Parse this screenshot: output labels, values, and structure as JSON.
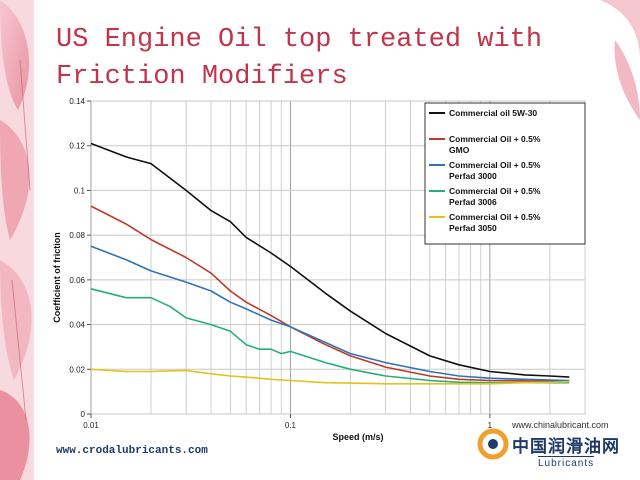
{
  "slide": {
    "title_line1": "US Engine Oil top treated with",
    "title_line2": "Friction Modifiers",
    "footer_url": "www.crodalubricants.com"
  },
  "watermark": {
    "url": "www.chinalubricant.com",
    "name_cn": "中国润滑油网",
    "name_en": "Lubricants"
  },
  "chart_data": {
    "type": "line",
    "xlabel": "Speed (m/s)",
    "ylabel": "Coefficient of friction",
    "xscale": "log",
    "xlim": [
      0.01,
      3
    ],
    "ylim": [
      0,
      0.14
    ],
    "xticks": [
      0.01,
      0.1,
      1
    ],
    "xtick_labels": [
      "0.01",
      "0.1",
      "1"
    ],
    "yticks": [
      0,
      0.02,
      0.04,
      0.06,
      0.08,
      0.1,
      0.12,
      0.14
    ],
    "ytick_labels": [
      "0",
      "0.02",
      "0.04",
      "0.06",
      "0.08",
      "0.1",
      "0.12",
      "0.14"
    ],
    "grid": true,
    "legend_position": "top-right",
    "series": [
      {
        "name_lines": [
          "Commercial oil 5W-30"
        ],
        "color": "#111111",
        "x": [
          0.01,
          0.015,
          0.02,
          0.03,
          0.04,
          0.05,
          0.06,
          0.08,
          0.1,
          0.15,
          0.2,
          0.3,
          0.5,
          0.7,
          1,
          1.5,
          2,
          2.5
        ],
        "y": [
          0.121,
          0.115,
          0.112,
          0.1,
          0.091,
          0.086,
          0.079,
          0.072,
          0.066,
          0.054,
          0.046,
          0.036,
          0.026,
          0.022,
          0.019,
          0.0175,
          0.017,
          0.0165
        ]
      },
      {
        "name_lines": [
          "Commercial Oil + 0.5%",
          "GMO"
        ],
        "color": "#c0392b",
        "x": [
          0.01,
          0.015,
          0.02,
          0.03,
          0.04,
          0.05,
          0.06,
          0.08,
          0.1,
          0.15,
          0.2,
          0.3,
          0.5,
          0.7,
          1,
          1.5,
          2,
          2.5
        ],
        "y": [
          0.093,
          0.085,
          0.078,
          0.07,
          0.063,
          0.055,
          0.05,
          0.044,
          0.039,
          0.031,
          0.026,
          0.021,
          0.017,
          0.0155,
          0.015,
          0.0148,
          0.0148,
          0.0148
        ]
      },
      {
        "name_lines": [
          "Commercial Oil + 0.5%",
          "Perfad 3000"
        ],
        "color": "#2e75b6",
        "x": [
          0.01,
          0.015,
          0.02,
          0.03,
          0.04,
          0.05,
          0.06,
          0.08,
          0.1,
          0.15,
          0.2,
          0.3,
          0.5,
          0.7,
          1,
          1.5,
          2,
          2.5
        ],
        "y": [
          0.075,
          0.069,
          0.064,
          0.059,
          0.055,
          0.05,
          0.047,
          0.042,
          0.039,
          0.032,
          0.027,
          0.023,
          0.019,
          0.017,
          0.016,
          0.0155,
          0.0152,
          0.015
        ]
      },
      {
        "name_lines": [
          "Commercial Oil + 0.5%",
          "Perfad 3006"
        ],
        "color": "#27ae78",
        "x": [
          0.01,
          0.015,
          0.02,
          0.025,
          0.03,
          0.04,
          0.05,
          0.06,
          0.07,
          0.08,
          0.09,
          0.1,
          0.15,
          0.2,
          0.3,
          0.5,
          0.7,
          1,
          1.5,
          2,
          2.5
        ],
        "y": [
          0.056,
          0.052,
          0.052,
          0.048,
          0.043,
          0.04,
          0.037,
          0.031,
          0.029,
          0.029,
          0.027,
          0.028,
          0.023,
          0.02,
          0.017,
          0.015,
          0.0142,
          0.014,
          0.014,
          0.014,
          0.014
        ]
      },
      {
        "name_lines": [
          "Commercial Oil + 0.5%",
          "Perfad 3050"
        ],
        "color": "#e3c21a",
        "x": [
          0.01,
          0.015,
          0.02,
          0.03,
          0.04,
          0.05,
          0.06,
          0.08,
          0.1,
          0.15,
          0.2,
          0.3,
          0.5,
          0.7,
          1,
          1.5,
          2,
          2.5
        ],
        "y": [
          0.02,
          0.019,
          0.019,
          0.0195,
          0.018,
          0.017,
          0.0165,
          0.0155,
          0.015,
          0.014,
          0.0138,
          0.0135,
          0.0135,
          0.0135,
          0.0135,
          0.014,
          0.0142,
          0.0145
        ]
      }
    ]
  }
}
